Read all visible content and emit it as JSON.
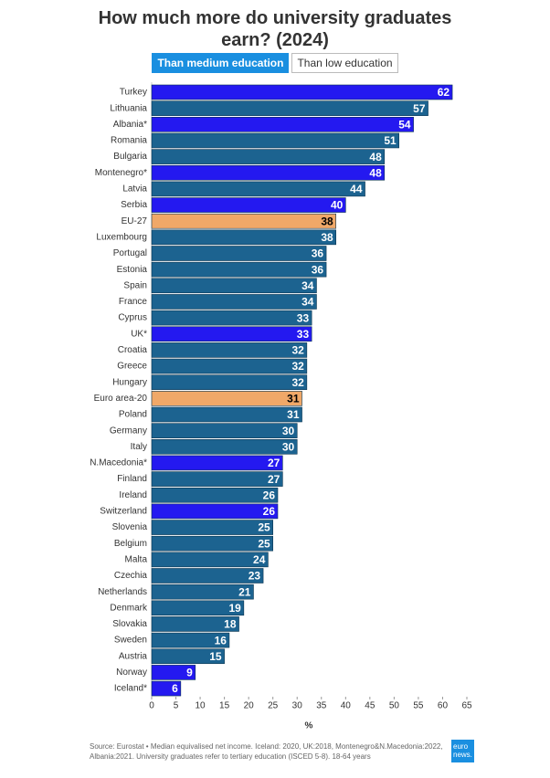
{
  "chart_data": {
    "type": "bar",
    "title": "How much more do university graduates earn? (2024)",
    "tabs": [
      "Than medium education",
      "Than low education"
    ],
    "categories": [
      "Turkey",
      "Lithuania",
      "Albania*",
      "Romania",
      "Bulgaria",
      "Montenegro*",
      "Latvia",
      "Serbia",
      "EU-27",
      "Luxembourg",
      "Portugal",
      "Estonia",
      "Spain",
      "France",
      "Cyprus",
      "UK*",
      "Croatia",
      "Greece",
      "Hungary",
      "Euro area-20",
      "Poland",
      "Germany",
      "Italy",
      "N.Macedonia*",
      "Finland",
      "Ireland",
      "Switzerland",
      "Slovenia",
      "Belgium",
      "Malta",
      "Czechia",
      "Netherlands",
      "Denmark",
      "Slovakia",
      "Sweden",
      "Austria",
      "Norway",
      "Iceland*"
    ],
    "values": [
      62,
      57,
      54,
      51,
      48,
      48,
      44,
      40,
      38,
      38,
      36,
      36,
      34,
      34,
      33,
      33,
      32,
      32,
      32,
      31,
      31,
      30,
      30,
      27,
      27,
      26,
      26,
      25,
      25,
      24,
      23,
      21,
      19,
      18,
      16,
      15,
      9,
      6
    ],
    "colors": [
      "#2419f0",
      "#1c6390",
      "#2419f0",
      "#1c6390",
      "#1c6390",
      "#2419f0",
      "#1c6390",
      "#2419f0",
      "#f0a868",
      "#1c6390",
      "#1c6390",
      "#1c6390",
      "#1c6390",
      "#1c6390",
      "#1c6390",
      "#2419f0",
      "#1c6390",
      "#1c6390",
      "#1c6390",
      "#f0a868",
      "#1c6390",
      "#1c6390",
      "#1c6390",
      "#2419f0",
      "#1c6390",
      "#1c6390",
      "#2419f0",
      "#1c6390",
      "#1c6390",
      "#1c6390",
      "#1c6390",
      "#1c6390",
      "#1c6390",
      "#1c6390",
      "#1c6390",
      "#1c6390",
      "#2419f0",
      "#2419f0"
    ],
    "orientation": "horizontal",
    "xlim": [
      0,
      65
    ],
    "xticks": [
      0,
      5,
      10,
      15,
      20,
      25,
      30,
      35,
      40,
      45,
      50,
      55,
      60,
      65
    ],
    "xlabel": "%",
    "source": "Source: Eurostat • Median equivalised net income. Iceland: 2020, UK:2018, Montenegro&N.Macedonia:2022, Albania:2021. University graduates refer to tertiary education (ISCED 5-8). 18-64 years",
    "logo": [
      "euro",
      "news."
    ]
  }
}
